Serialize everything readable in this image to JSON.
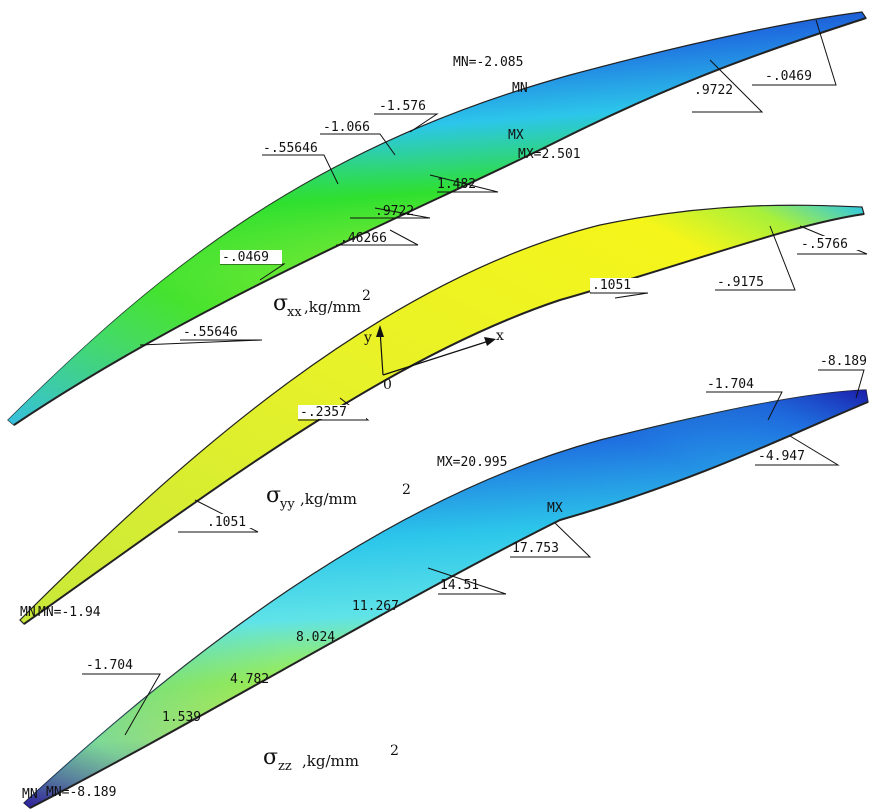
{
  "plots": {
    "sxx": {
      "symbol": "σ",
      "subscript": "xx",
      "unit": ",kg/mm",
      "power": "2",
      "mn_text": "MN=-2.085",
      "mx_text": "MX=2.501",
      "mn_marker": "MN",
      "mx_marker": "MX",
      "contours": [
        "-1.576",
        "-1.066",
        "-.55646",
        "-.0469",
        "-.55646",
        ".46266",
        ".9722",
        "1.482",
        ".9722",
        "-.0469"
      ]
    },
    "syy": {
      "symbol": "σ",
      "subscript": "yy",
      "unit": ",kg/mm",
      "power": "2",
      "contours": [
        ".1051",
        "-.9175",
        "-.5766",
        "-.2357",
        ".1051"
      ],
      "mn_text": "MN=-1.94",
      "mn_marker": "MN",
      "axis_x": "x",
      "axis_y": "y",
      "origin": "0"
    },
    "szz": {
      "symbol": "σ",
      "subscript": "zz",
      "unit": ",kg/mm",
      "power": "2",
      "mx_text": "MX=20.995",
      "mn_text": "MN=-8.189",
      "mx_marker": "MX",
      "mn_marker": "MN",
      "contours": [
        "-8.189",
        "-1.704",
        "-4.947",
        "17.753",
        "14.51",
        "11.267",
        "8.024",
        "4.782",
        "1.539",
        "-1.704"
      ]
    }
  },
  "colors": {
    "blue_dark": "#1a1aa8",
    "blue": "#1f6fe0",
    "cyan": "#2cc6ea",
    "cyan_light": "#5fe3e8",
    "green": "#2fe02f",
    "green_yellow": "#a8f03a",
    "yellow": "#f5f51a",
    "yellow_green": "#d8f040",
    "orange": "#f5a01a",
    "red": "#e01a1a",
    "edge": "#222222"
  }
}
